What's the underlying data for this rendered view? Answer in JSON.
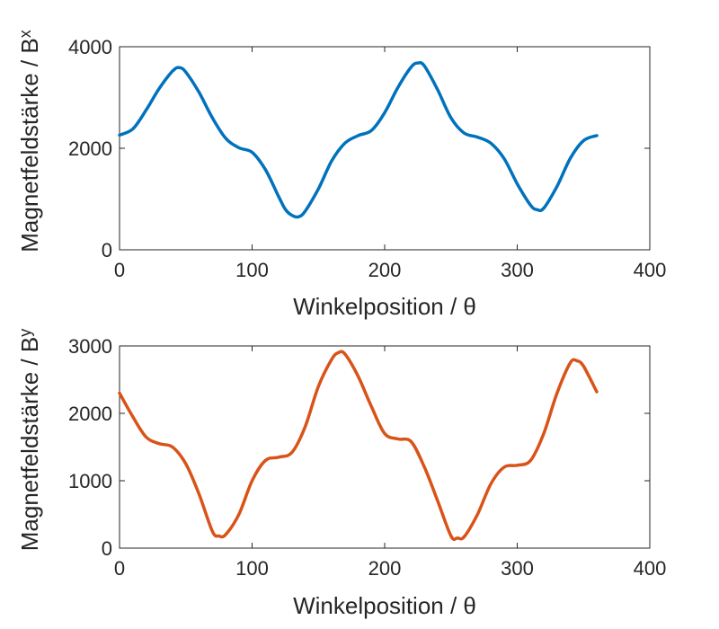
{
  "chart_data": [
    {
      "type": "line",
      "xlabel": "Winkelposition / θ",
      "ylabel": "Magnetfeldstärke / B",
      "ylabel_subscript": "x",
      "xlim": [
        0,
        400
      ],
      "ylim": [
        0,
        4000
      ],
      "xticks": [
        "0",
        "100",
        "200",
        "300",
        "400"
      ],
      "yticks": [
        "0",
        "2000",
        "4000"
      ],
      "color": "#0072BD",
      "grid": false,
      "series": [
        {
          "x": [
            0,
            10,
            20,
            30,
            40,
            45,
            50,
            60,
            70,
            80,
            90,
            100,
            110,
            120,
            125,
            130,
            135,
            140,
            150,
            160,
            170,
            180,
            190,
            200,
            210,
            220,
            225,
            230,
            240,
            250,
            260,
            270,
            280,
            290,
            300,
            310,
            315,
            320,
            330,
            340,
            350,
            360
          ],
          "values": [
            2260,
            2380,
            2750,
            3180,
            3520,
            3590,
            3500,
            3100,
            2600,
            2200,
            2010,
            1920,
            1580,
            1050,
            800,
            680,
            650,
            760,
            1200,
            1750,
            2100,
            2250,
            2350,
            2700,
            3200,
            3600,
            3680,
            3620,
            3150,
            2600,
            2300,
            2220,
            2100,
            1800,
            1300,
            880,
            790,
            820,
            1250,
            1800,
            2150,
            2250
          ]
        }
      ]
    },
    {
      "type": "line",
      "xlabel": "Winkelposition / θ",
      "ylabel": "Magnetfeldstärke / B",
      "ylabel_subscript": "y",
      "xlim": [
        0,
        400
      ],
      "ylim": [
        0,
        3000
      ],
      "xticks": [
        "0",
        "100",
        "200",
        "300",
        "400"
      ],
      "yticks": [
        "0",
        "1000",
        "2000",
        "3000"
      ],
      "color": "#D95319",
      "grid": false,
      "series": [
        {
          "x": [
            0,
            10,
            20,
            30,
            40,
            50,
            60,
            70,
            75,
            80,
            90,
            100,
            110,
            120,
            130,
            140,
            150,
            160,
            165,
            170,
            180,
            190,
            200,
            210,
            220,
            230,
            240,
            250,
            255,
            260,
            270,
            280,
            290,
            300,
            310,
            320,
            330,
            340,
            345,
            350,
            360
          ],
          "values": [
            2300,
            1950,
            1650,
            1550,
            1500,
            1250,
            800,
            250,
            180,
            200,
            500,
            1000,
            1300,
            1350,
            1420,
            1800,
            2400,
            2800,
            2900,
            2880,
            2550,
            2100,
            1700,
            1620,
            1580,
            1200,
            700,
            180,
            150,
            170,
            500,
            950,
            1200,
            1230,
            1300,
            1700,
            2300,
            2750,
            2780,
            2700,
            2320
          ]
        }
      ]
    }
  ]
}
